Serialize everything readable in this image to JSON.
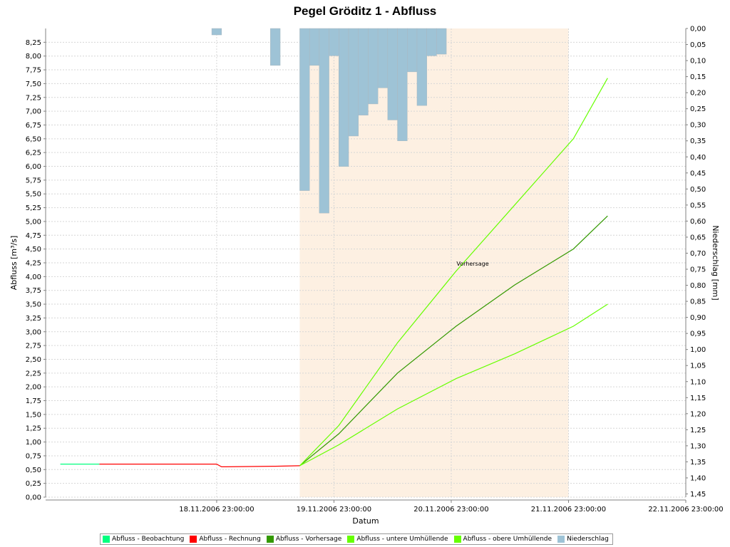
{
  "chart_data": {
    "type": "line",
    "title": "Pegel Gröditz 1 - Abfluss",
    "xlabel": "Datum",
    "ylabel": "Abfluss [m³/s]",
    "y2label": "Niederschlag [mm]",
    "ylim": [
      0,
      8.5
    ],
    "y2lim": [
      0,
      1.46
    ],
    "y2_inverted": true,
    "xlim": [
      "2006-11-17 12:00",
      "2006-11-22 23:00"
    ],
    "x_ticks": [
      "18.11.2006 23:00:00",
      "19.11.2006 23:00:00",
      "20.11.2006 23:00:00",
      "21.11.2006 23:00:00",
      "22.11.2006 23:00:00"
    ],
    "y_ticks": [
      "0,00",
      "0,25",
      "0,50",
      "0,75",
      "1,00",
      "1,25",
      "1,50",
      "1,75",
      "2,00",
      "2,25",
      "2,50",
      "2,75",
      "3,00",
      "3,25",
      "3,50",
      "3,75",
      "4,00",
      "4,25",
      "4,50",
      "4,75",
      "5,00",
      "5,25",
      "5,50",
      "5,75",
      "6,00",
      "6,25",
      "6,50",
      "6,75",
      "7,00",
      "7,25",
      "7,50",
      "7,75",
      "8,00",
      "8,25"
    ],
    "y2_ticks": [
      "0,00",
      "0,05",
      "0,10",
      "0,15",
      "0,20",
      "0,25",
      "0,30",
      "0,35",
      "0,40",
      "0,45",
      "0,50",
      "0,55",
      "0,60",
      "0,65",
      "0,70",
      "0,75",
      "0,80",
      "0,85",
      "0,90",
      "0,95",
      "1,00",
      "1,05",
      "1,10",
      "1,15",
      "1,20",
      "1,25",
      "1,30",
      "1,35",
      "1,40",
      "1,45"
    ],
    "grid": true,
    "legend_position": "bottom",
    "forecast_region": {
      "start": "2006-11-19 16:00",
      "end": "2006-11-21 23:00",
      "label": "Vorhersage",
      "color": "#fdf0e2"
    },
    "series": [
      {
        "name": "Abfluss - Beobachtung",
        "color": "#00ff7f",
        "kind": "line",
        "x": [
          "2006-11-17 15:00",
          "2006-11-17 23:00"
        ],
        "y": [
          0.6,
          0.6
        ]
      },
      {
        "name": "Abfluss - Rechnung",
        "color": "#ff0000",
        "kind": "line",
        "x": [
          "2006-11-17 23:00",
          "2006-11-18 23:00",
          "2006-11-19 00:00",
          "2006-11-19 01:00",
          "2006-11-19 11:00",
          "2006-11-19 16:00"
        ],
        "y": [
          0.6,
          0.6,
          0.55,
          0.55,
          0.56,
          0.57
        ]
      },
      {
        "name": "Abfluss - Vorhersage",
        "color": "#339900",
        "kind": "line",
        "x": [
          "2006-11-19 16:00",
          "2006-11-20 00:00",
          "2006-11-20 12:00",
          "2006-11-21 00:00",
          "2006-11-21 12:00",
          "2006-11-22 00:00",
          "2006-11-22 07:00"
        ],
        "y": [
          0.57,
          1.15,
          2.25,
          3.1,
          3.85,
          4.5,
          5.1
        ]
      },
      {
        "name": "Abfluss - untere Umhüllende",
        "color": "#66ff00",
        "kind": "line",
        "x": [
          "2006-11-19 16:00",
          "2006-11-20 00:00",
          "2006-11-20 12:00",
          "2006-11-21 00:00",
          "2006-11-21 12:00",
          "2006-11-22 00:00",
          "2006-11-22 07:00"
        ],
        "y": [
          0.57,
          0.95,
          1.6,
          2.15,
          2.6,
          3.1,
          3.5
        ]
      },
      {
        "name": "Abfluss - obere Umhüllende",
        "color": "#66ff00",
        "kind": "line",
        "x": [
          "2006-11-19 16:00",
          "2006-11-20 00:00",
          "2006-11-20 12:00",
          "2006-11-21 00:00",
          "2006-11-21 12:00",
          "2006-11-22 00:00",
          "2006-11-22 07:00"
        ],
        "y": [
          0.57,
          1.3,
          2.8,
          4.1,
          5.3,
          6.5,
          7.6
        ]
      },
      {
        "name": "Niederschlag",
        "color": "#9ec3d6",
        "kind": "bar",
        "axis": "y2",
        "x": [
          "2006-11-18 23:00",
          "2006-11-19 11:00",
          "2006-11-19 17:00",
          "2006-11-19 19:00",
          "2006-11-19 21:00",
          "2006-11-19 23:00",
          "2006-11-20 01:00",
          "2006-11-20 03:00",
          "2006-11-20 05:00",
          "2006-11-20 07:00",
          "2006-11-20 09:00",
          "2006-11-20 11:00",
          "2006-11-20 13:00",
          "2006-11-20 15:00",
          "2006-11-20 17:00",
          "2006-11-20 19:00",
          "2006-11-20 21:00"
        ],
        "y": [
          0.02,
          0.115,
          0.505,
          0.115,
          0.575,
          0.085,
          0.43,
          0.335,
          0.27,
          0.235,
          0.185,
          0.285,
          0.35,
          0.135,
          0.24,
          0.085,
          0.08
        ]
      }
    ]
  }
}
